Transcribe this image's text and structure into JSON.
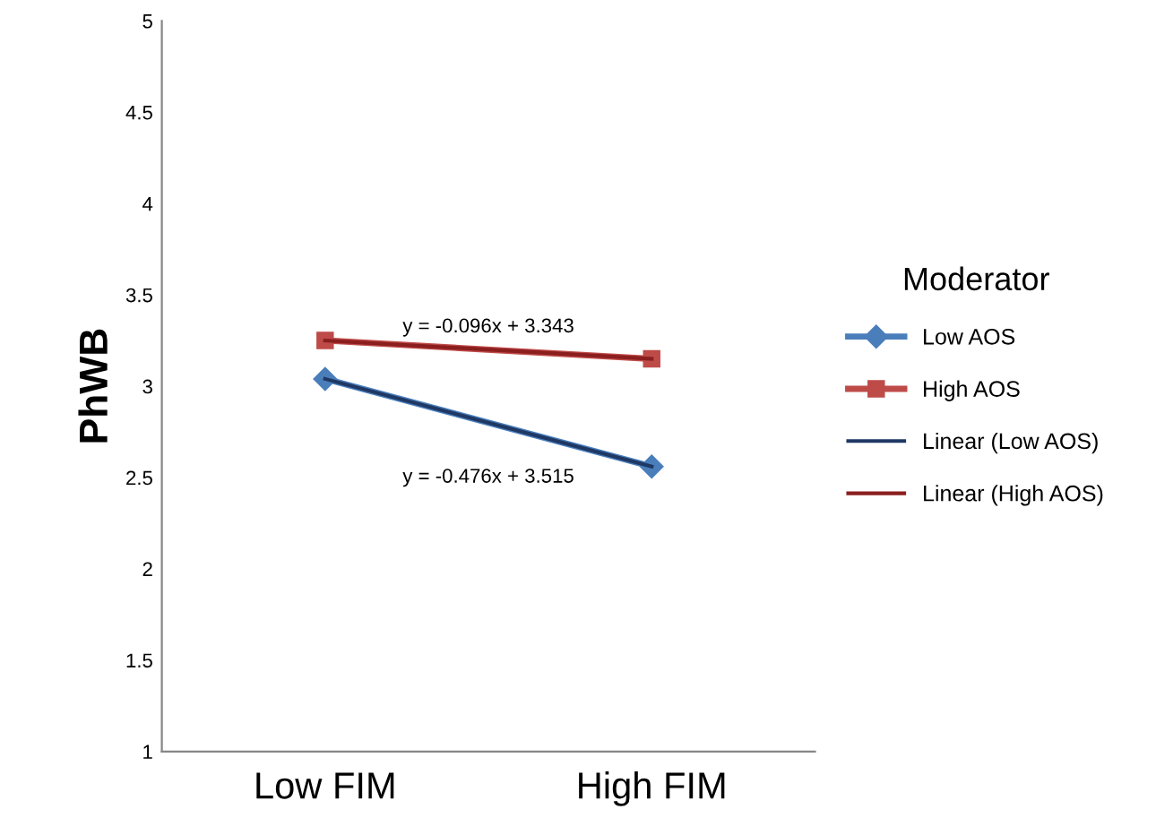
{
  "chart_data": {
    "type": "line",
    "ylabel": "PhWB",
    "legend_title": "Moderator",
    "categories": [
      "Low FIM",
      "High FIM"
    ],
    "series": [
      {
        "name": "Low AOS",
        "color": "#4a7ebb",
        "values": [
          3.04,
          2.56
        ],
        "marker": "diamond"
      },
      {
        "name": "High AOS",
        "color": "#be4b48",
        "values": [
          3.25,
          3.15
        ],
        "marker": "square"
      },
      {
        "name": "Linear (Low AOS)",
        "color": "#1f3864",
        "values": [
          3.04,
          2.56
        ],
        "marker": "none"
      },
      {
        "name": "Linear (High AOS)",
        "color": "#8b1e1e",
        "values": [
          3.25,
          3.15
        ],
        "marker": "none"
      }
    ],
    "ylim": [
      1,
      5
    ],
    "yticks": [
      1,
      1.5,
      2,
      2.5,
      3,
      3.5,
      4,
      4.5,
      5
    ],
    "annotations": [
      "y = -0.096x + 3.343",
      "y = -0.476x + 3.515"
    ],
    "grid": false,
    "legend": "right",
    "line_style": "solid"
  }
}
